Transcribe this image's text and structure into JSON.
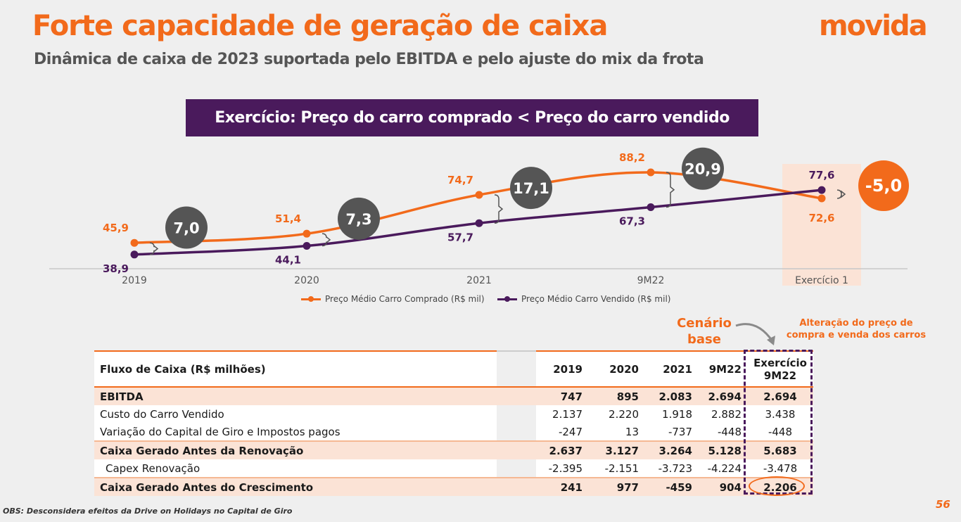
{
  "header": {
    "title": "Forte capacidade de geração de caixa",
    "subtitle": "Dinâmica de caixa de 2023 suportada pelo EBITDA e pelo ajuste do mix da frota",
    "logo": "movida"
  },
  "banner": "Exercício: Preço do carro comprado < Preço do carro vendido",
  "chart_data": {
    "type": "line",
    "categories": [
      "2019",
      "2020",
      "2021",
      "9M22",
      "Exercício 1"
    ],
    "series": [
      {
        "name": "Preço Médio Carro Comprado (R$ mil)",
        "values": [
          45.9,
          51.4,
          74.7,
          88.2,
          72.6
        ],
        "labels": [
          "45,9",
          "51,4",
          "74,7",
          "88,2",
          "72,6"
        ],
        "color": "#f26a1b"
      },
      {
        "name": "Preço Médio Carro Vendido (R$ mil)",
        "values": [
          38.9,
          44.1,
          57.7,
          67.3,
          77.6
        ],
        "labels": [
          "38,9",
          "44,1",
          "57,7",
          "67,3",
          "77,6"
        ],
        "color": "#4a1a5c"
      }
    ],
    "gaps": [
      "7,0",
      "7,3",
      "17,1",
      "20,9",
      "-5,0"
    ],
    "highlight_category": "Exercício 1",
    "legend": "bottom"
  },
  "notes": {
    "base_line1": "Cenário",
    "base_line2": "base",
    "alt_line1": "Alteração do preço de",
    "alt_line2": "compra e venda dos carros"
  },
  "table": {
    "header_label": "Fluxo de Caixa (R$ milhões)",
    "columns": [
      "2019",
      "2020",
      "2021",
      "9M22"
    ],
    "ex_header_line1": "Exercício",
    "ex_header_line2": "9M22",
    "rows": [
      {
        "label": "EBITDA",
        "values": [
          "747",
          "895",
          "2.083",
          "2.694",
          "2.694"
        ]
      },
      {
        "label": "Custo do Carro Vendido",
        "values": [
          "2.137",
          "2.220",
          "1.918",
          "2.882",
          "3.438"
        ]
      },
      {
        "label": "Variação do Capital de Giro e Impostos pagos",
        "values": [
          "-247",
          "13",
          "-737",
          "-448",
          "-448"
        ]
      },
      {
        "label": "Caixa Gerado Antes da Renovação",
        "values": [
          "2.637",
          "3.127",
          "3.264",
          "5.128",
          "5.683"
        ]
      },
      {
        "label": "Capex Renovação",
        "values": [
          "-2.395",
          "-2.151",
          "-3.723",
          "-4.224",
          "-3.478"
        ]
      },
      {
        "label": "Caixa Gerado Antes do Crescimento",
        "values": [
          "241",
          "977",
          "-459",
          "904",
          "2.206"
        ]
      }
    ]
  },
  "footnote": "OBS: Desconsidera efeitos da Drive on Holidays no Capital de Giro",
  "page_number": "56"
}
